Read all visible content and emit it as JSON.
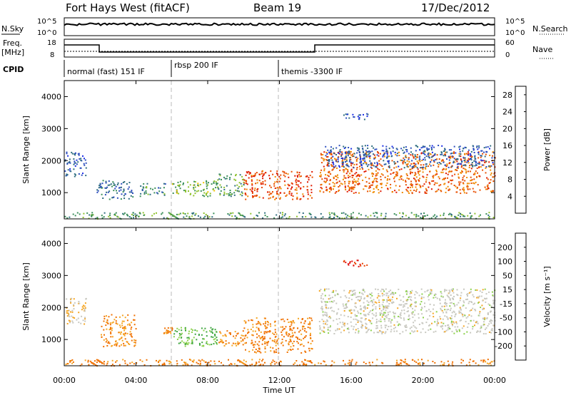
{
  "header": {
    "station": "Fort Hays West (fitACF)",
    "beam": "Beam 19",
    "date": "17/Dec/2012"
  },
  "strips": {
    "nsky_label": "N.Sky",
    "nsearch_label": "N.Search",
    "noise_ticks": [
      "10^5",
      "10^0"
    ],
    "freq_label": "Freq.",
    "freq_unit": "[MHz]",
    "freq_ticks": [
      "18",
      "8"
    ],
    "nave_label": "Nave",
    "nave_ticks": [
      "60",
      "0"
    ],
    "cpid_label": "CPID",
    "cpid_modes": [
      {
        "name": "normal (fast) 151 IF",
        "start": 0,
        "end": 6
      },
      {
        "name": "rbsp 200 IF",
        "start": 6,
        "end": 12
      },
      {
        "name": "themis -3300 IF",
        "start": 12,
        "end": 24
      }
    ]
  },
  "chart_data": [
    {
      "type": "heatmap",
      "title": "",
      "xlabel": "Time UT",
      "ylabel": "Slant Range [km]",
      "xlim": [
        0,
        24
      ],
      "ylim": [
        180,
        4500
      ],
      "x_ticks": [
        "00:00",
        "04:00",
        "08:00",
        "12:00",
        "16:00",
        "20:00",
        "00:00"
      ],
      "y_ticks": [
        1000,
        2000,
        3000,
        4000
      ],
      "colorbar": {
        "label": "Power [dB]",
        "ticks": [
          4,
          8,
          12,
          16,
          20,
          24,
          28
        ],
        "range": [
          0,
          30
        ],
        "colors": [
          "#1a2ee6",
          "#2e4fbf",
          "#2f6e80",
          "#3b8f5a",
          "#8fc22e",
          "#f2c200",
          "#f08a00",
          "#e84e00",
          "#e01a00"
        ]
      },
      "scatter_regions": [
        {
          "t": [
            0.0,
            1.2
          ],
          "r": [
            1500,
            2300
          ],
          "value": 6
        },
        {
          "t": [
            1.8,
            3.8
          ],
          "r": [
            800,
            1400
          ],
          "value": 8
        },
        {
          "t": [
            4.2,
            5.6
          ],
          "r": [
            900,
            1300
          ],
          "value": 10
        },
        {
          "t": [
            6.0,
            8.5
          ],
          "r": [
            900,
            1400
          ],
          "value": 14
        },
        {
          "t": [
            8.5,
            10.0
          ],
          "r": [
            900,
            1600
          ],
          "value": 12
        },
        {
          "t": [
            10.0,
            13.8
          ],
          "r": [
            800,
            1700
          ],
          "value": 26
        },
        {
          "t": [
            14.2,
            24.0
          ],
          "r": [
            1000,
            2300
          ],
          "value": 24
        },
        {
          "t": [
            14.5,
            24.0
          ],
          "r": [
            1800,
            2500
          ],
          "value": 6
        },
        {
          "t": [
            15.5,
            17.0
          ],
          "r": [
            3300,
            3500
          ],
          "value": 5
        },
        {
          "t": [
            0.0,
            24.0
          ],
          "r": [
            200,
            400
          ],
          "value": 12
        }
      ]
    },
    {
      "type": "heatmap",
      "title": "",
      "xlabel": "Time UT",
      "ylabel": "Slant Range [km]",
      "xlim": [
        0,
        24
      ],
      "ylim": [
        180,
        4500
      ],
      "x_ticks": [
        "00:00",
        "04:00",
        "08:00",
        "12:00",
        "16:00",
        "20:00",
        "00:00"
      ],
      "y_ticks": [
        1000,
        2000,
        3000,
        4000
      ],
      "colorbar": {
        "label": "Velocity [m s⁻¹]",
        "ticks": [
          200,
          100,
          50,
          15,
          -15,
          -50,
          -100,
          -200
        ],
        "colors": [
          "#1c2fb0",
          "#2c57d1",
          "#3fa640",
          "#8dd14c",
          "#c8c8c0",
          "#f5a623",
          "#f07000",
          "#e84000",
          "#e01010"
        ]
      },
      "scatter_regions": [
        {
          "t": [
            0.0,
            1.2
          ],
          "r": [
            1500,
            2300
          ],
          "value": -15
        },
        {
          "t": [
            2.0,
            4.0
          ],
          "r": [
            800,
            1800
          ],
          "value": -50
        },
        {
          "t": [
            5.5,
            6.0
          ],
          "r": [
            1200,
            1400
          ],
          "value": -50
        },
        {
          "t": [
            6.0,
            8.5
          ],
          "r": [
            800,
            1400
          ],
          "value": 50
        },
        {
          "t": [
            8.5,
            10.0
          ],
          "r": [
            800,
            1300
          ],
          "value": -50
        },
        {
          "t": [
            10.0,
            13.8
          ],
          "r": [
            600,
            1700
          ],
          "value": -60
        },
        {
          "t": [
            14.2,
            24.0
          ],
          "r": [
            1200,
            2600
          ],
          "value": 0
        },
        {
          "t": [
            15.5,
            17.0
          ],
          "r": [
            3300,
            3500
          ],
          "value": -200
        },
        {
          "t": [
            0.0,
            24.0
          ],
          "r": [
            200,
            400
          ],
          "value": -60
        }
      ]
    }
  ]
}
